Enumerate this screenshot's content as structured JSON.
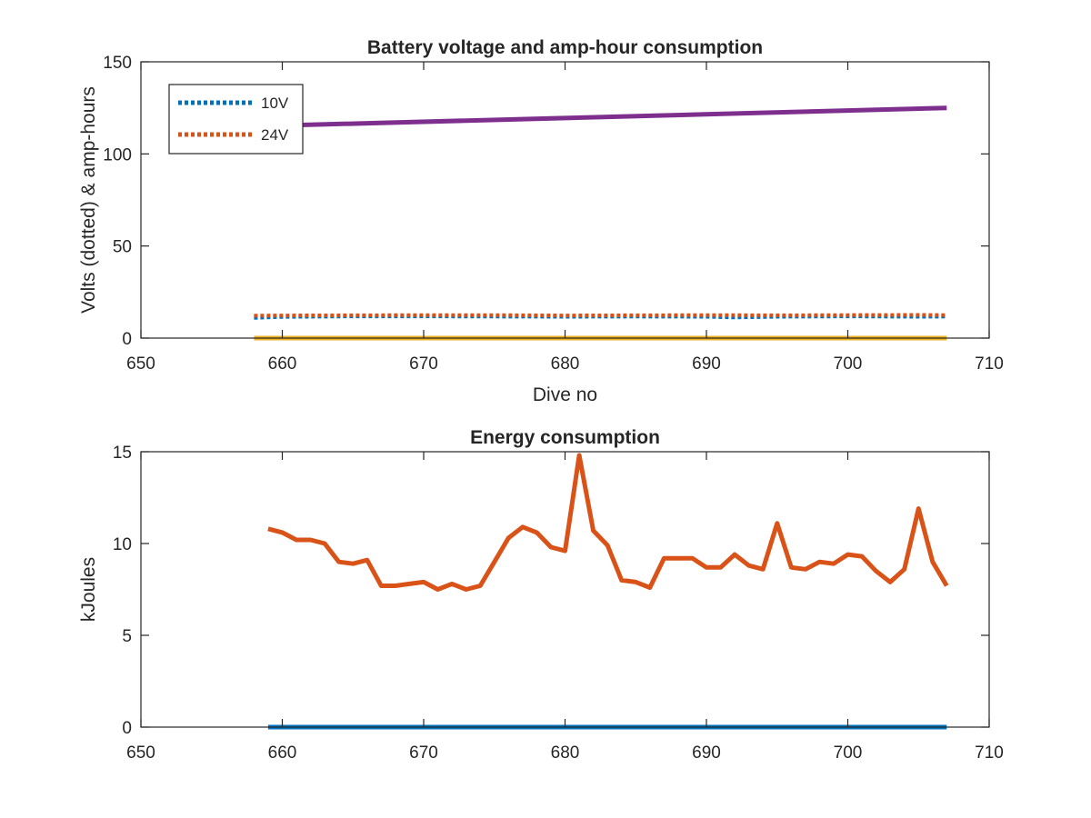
{
  "chart_data": [
    {
      "type": "line",
      "title": "Battery voltage and amp-hour consumption",
      "xlabel": "Dive no",
      "ylabel": "Volts (dotted) & amp-hours",
      "xlim": [
        650,
        710
      ],
      "ylim": [
        0,
        150
      ],
      "xticks": [
        "650",
        "660",
        "670",
        "680",
        "690",
        "700",
        "710"
      ],
      "yticks": [
        "0",
        "50",
        "100",
        "150"
      ],
      "grid": false,
      "legend_position": "top-left",
      "series": [
        {
          "name": "10V",
          "color": "#0072BD",
          "style": "dotted",
          "x": [
            658,
            660,
            665,
            670,
            675,
            680,
            685,
            690,
            692,
            695,
            700,
            705,
            707
          ],
          "y": [
            11,
            11.5,
            11.8,
            11.8,
            11.7,
            11.6,
            11.7,
            11.6,
            11.2,
            11.6,
            11.8,
            11.6,
            11.7
          ]
        },
        {
          "name": "24V",
          "color": "#D95319",
          "style": "dotted",
          "x": [
            658,
            660,
            665,
            670,
            675,
            680,
            685,
            690,
            695,
            700,
            705,
            707
          ],
          "y": [
            12.2,
            12.3,
            12.4,
            12.5,
            12.5,
            12.3,
            12.4,
            12.5,
            12.4,
            12.5,
            12.6,
            12.5
          ]
        },
        {
          "color": "#7E2F8E",
          "style": "solid",
          "x": [
            658,
            707
          ],
          "y": [
            115,
            125
          ]
        },
        {
          "color": "#EDB120",
          "style": "solid",
          "x": [
            658,
            707
          ],
          "y": [
            0,
            0
          ]
        }
      ]
    },
    {
      "type": "line",
      "title": "Energy consumption",
      "xlabel": "",
      "ylabel": "kJoules",
      "xlim": [
        650,
        710
      ],
      "ylim": [
        0,
        15
      ],
      "xticks": [
        "650",
        "660",
        "670",
        "680",
        "690",
        "700",
        "710"
      ],
      "yticks": [
        "0",
        "5",
        "10",
        "15"
      ],
      "grid": false,
      "series": [
        {
          "color": "#D95319",
          "style": "solid",
          "x": [
            659,
            660,
            661,
            662,
            663,
            664,
            665,
            666,
            667,
            668,
            669,
            670,
            671,
            672,
            673,
            674,
            675,
            676,
            677,
            678,
            679,
            680,
            681,
            682,
            683,
            684,
            685,
            686,
            687,
            688,
            689,
            690,
            691,
            692,
            693,
            694,
            695,
            696,
            697,
            698,
            699,
            700,
            701,
            702,
            703,
            704,
            705,
            706,
            707
          ],
          "y": [
            10.8,
            10.6,
            10.2,
            10.2,
            10.0,
            9.0,
            8.9,
            9.1,
            7.7,
            7.7,
            7.8,
            7.9,
            7.5,
            7.8,
            7.5,
            7.7,
            9.0,
            10.3,
            10.9,
            10.6,
            9.8,
            9.6,
            14.8,
            10.7,
            9.9,
            8.0,
            7.9,
            7.6,
            9.2,
            9.2,
            9.2,
            8.7,
            8.7,
            9.4,
            8.8,
            8.6,
            11.1,
            8.7,
            8.6,
            9.0,
            8.9,
            9.4,
            9.3,
            8.5,
            7.9,
            8.6,
            11.9,
            9.0,
            7.7
          ]
        },
        {
          "color": "#0072BD",
          "style": "solid",
          "x": [
            659,
            707
          ],
          "y": [
            0,
            0
          ]
        }
      ]
    }
  ]
}
